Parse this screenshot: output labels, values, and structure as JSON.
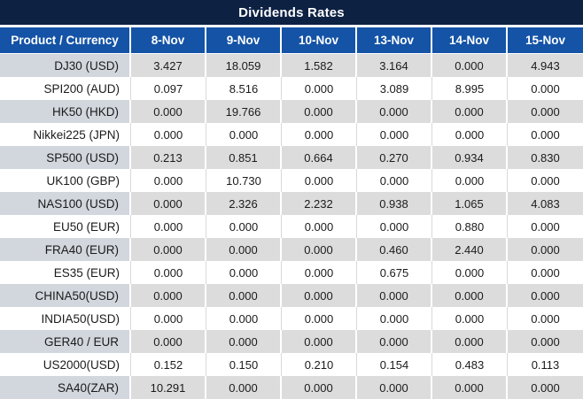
{
  "title": "Dividends Rates",
  "colors": {
    "title_bar_bg": "#0d2143",
    "header_row_bg": "#1453a6",
    "header_text": "#ffffff",
    "striped_row_bg": "#dcdcdc",
    "striped_product_bg": "#d2d6dd",
    "plain_row_bg": "#ffffff",
    "cell_divider": "#d9d9d9",
    "nonzero_value_text": "#fe0000",
    "zero_value_text": "#1b1b1b"
  },
  "chart_data": {
    "type": "table",
    "title": "Dividends Rates",
    "columns": [
      "Product / Currency",
      "8-Nov",
      "9-Nov",
      "10-Nov",
      "13-Nov",
      "14-Nov",
      "15-Nov"
    ],
    "rows": [
      [
        "DJ30 (USD)",
        "3.427",
        "18.059",
        "1.582",
        "3.164",
        "0.000",
        "4.943"
      ],
      [
        "SPI200 (AUD)",
        "0.097",
        "8.516",
        "0.000",
        "3.089",
        "8.995",
        "0.000"
      ],
      [
        "HK50 (HKD)",
        "0.000",
        "19.766",
        "0.000",
        "0.000",
        "0.000",
        "0.000"
      ],
      [
        "Nikkei225 (JPN)",
        "0.000",
        "0.000",
        "0.000",
        "0.000",
        "0.000",
        "0.000"
      ],
      [
        "SP500 (USD)",
        "0.213",
        "0.851",
        "0.664",
        "0.270",
        "0.934",
        "0.830"
      ],
      [
        "UK100 (GBP)",
        "0.000",
        "10.730",
        "0.000",
        "0.000",
        "0.000",
        "0.000"
      ],
      [
        "NAS100 (USD)",
        "0.000",
        "2.326",
        "2.232",
        "0.938",
        "1.065",
        "4.083"
      ],
      [
        "EU50 (EUR)",
        "0.000",
        "0.000",
        "0.000",
        "0.000",
        "0.880",
        "0.000"
      ],
      [
        "FRA40 (EUR)",
        "0.000",
        "0.000",
        "0.000",
        "0.460",
        "2.440",
        "0.000"
      ],
      [
        "ES35 (EUR)",
        "0.000",
        "0.000",
        "0.000",
        "0.675",
        "0.000",
        "0.000"
      ],
      [
        "CHINA50(USD)",
        "0.000",
        "0.000",
        "0.000",
        "0.000",
        "0.000",
        "0.000"
      ],
      [
        "INDIA50(USD)",
        "0.000",
        "0.000",
        "0.000",
        "0.000",
        "0.000",
        "0.000"
      ],
      [
        "GER40 / EUR",
        "0.000",
        "0.000",
        "0.000",
        "0.000",
        "0.000",
        "0.000"
      ],
      [
        "US2000(USD)",
        "0.152",
        "0.150",
        "0.210",
        "0.154",
        "0.483",
        "0.113"
      ],
      [
        "SA40(ZAR)",
        "10.291",
        "0.000",
        "0.000",
        "0.000",
        "0.000",
        "0.000"
      ]
    ]
  }
}
